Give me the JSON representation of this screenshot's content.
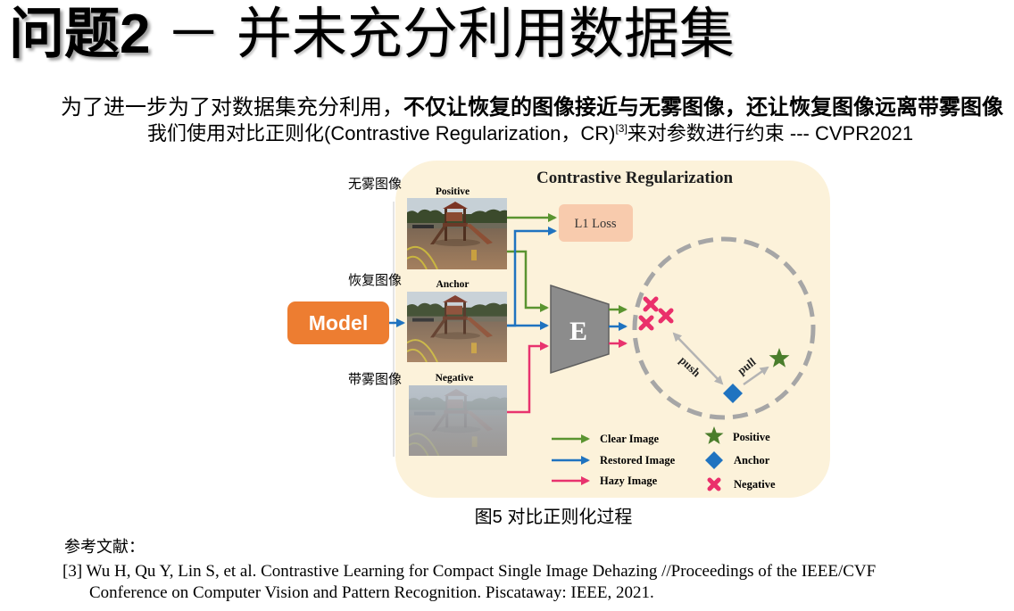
{
  "slide": {
    "title": {
      "bold": "问题2",
      "rest": " － 并未充分利用数据集"
    },
    "intro": {
      "line1_regular": "为了进一步为了对数据集充分利用，",
      "line1_bold": "不仅让恢复的图像接近与无雾图像，还让恢复图像远离带雾图像",
      "line2_before": "我们使用对比正则化(Contrastive Regularization，CR)",
      "line2_citation": "[3]",
      "line2_after": "来对参数进行约束 --- CVPR2021"
    },
    "figure_caption": "图5 对比正则化过程",
    "references": {
      "heading": "参考文献：",
      "entries": [
        {
          "line1": "[3] Wu H, Qu Y, Lin S, et al. Contrastive Learning for Compact Single Image Dehazing //Proceedings of the IEEE/CVF",
          "line2": "Conference on Computer Vision and Pattern Recognition. Piscataway: IEEE, 2021."
        }
      ]
    }
  },
  "diagram": {
    "title": "Contrastive Regularization",
    "side_labels": [
      "无雾图像",
      "恢复图像",
      "带雾图像"
    ],
    "model_label": "Model",
    "images": [
      {
        "label": "Positive"
      },
      {
        "label": "Anchor"
      },
      {
        "label": "Negative"
      }
    ],
    "loss_label": "L1 Loss",
    "encoder_label": "E",
    "push_label": "push",
    "pull_label": "pull",
    "legend": {
      "arrows": [
        {
          "label": "Clear Image",
          "color": "#5a9430"
        },
        {
          "label": "Restored Image",
          "color": "#1f73c0"
        },
        {
          "label": "Hazy Image",
          "color": "#e8336e"
        }
      ],
      "markers": [
        {
          "label": "Positive",
          "icon": "star-icon",
          "color": "#4a7d2b"
        },
        {
          "label": "Anchor",
          "icon": "diamond-icon",
          "color": "#1f73c0"
        },
        {
          "label": "Negative",
          "icon": "cross-icon",
          "color": "#ea2f6b"
        }
      ]
    },
    "colors": {
      "panel_background": "#fcf2da",
      "model_box": "#ed7d31",
      "loss_box": "#f8cbad",
      "encoder": "#8c8c8c",
      "dashed_circle": "#a6a6a6"
    }
  }
}
